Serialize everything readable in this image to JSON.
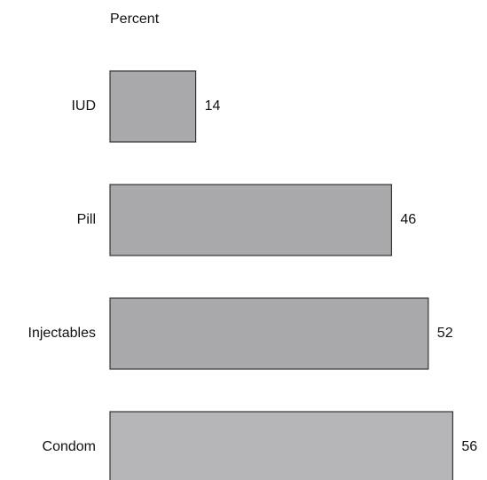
{
  "chart_data": {
    "type": "bar",
    "orientation": "horizontal",
    "title": "Percent",
    "categories": [
      "IUD",
      "Pill",
      "Injectables",
      "Condom"
    ],
    "values": [
      14,
      46,
      52,
      56
    ],
    "colors": [
      "#a9a9ab",
      "#a9a9ab",
      "#a9a9ab",
      "#b6b6b8"
    ]
  }
}
